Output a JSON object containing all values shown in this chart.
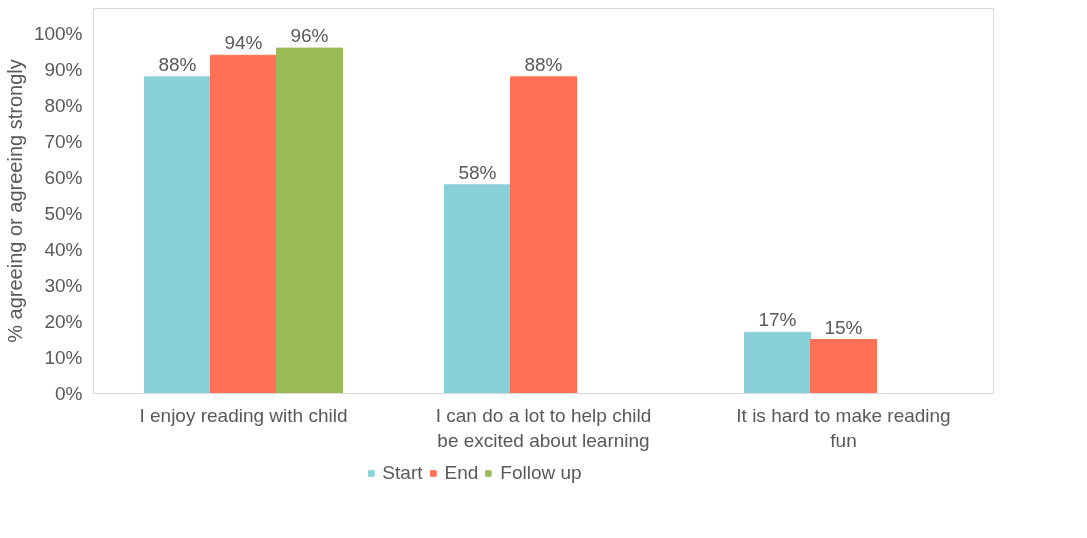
{
  "chart_data": {
    "type": "bar",
    "ylabel": "% agreeing or agreeing strongly",
    "categories": [
      "I enjoy reading with child",
      "I can do a lot to help child be excited about learning",
      "It is hard to make reading fun"
    ],
    "series": [
      {
        "name": "Start",
        "color": "#8ad0d9",
        "values": [
          88,
          58,
          17
        ],
        "value_labels": [
          "88%",
          "58%",
          "17%"
        ]
      },
      {
        "name": "End",
        "color": "#ff7056",
        "values": [
          94,
          88,
          15
        ],
        "value_labels": [
          "94%",
          "88%",
          "15%"
        ]
      },
      {
        "name": "Follow up",
        "color": "#9bbb59",
        "values": [
          96,
          null,
          null
        ],
        "value_labels": [
          "96%",
          null,
          null
        ]
      }
    ],
    "ylim": [
      0,
      107
    ],
    "yticks": [
      {
        "value": 0,
        "label": "0%"
      },
      {
        "value": 10,
        "label": "10%"
      },
      {
        "value": 20,
        "label": "20%"
      },
      {
        "value": 30,
        "label": "30%"
      },
      {
        "value": 40,
        "label": "40%"
      },
      {
        "value": 50,
        "label": "50%"
      },
      {
        "value": 60,
        "label": "60%"
      },
      {
        "value": 70,
        "label": "70%"
      },
      {
        "value": 80,
        "label": "80%"
      },
      {
        "value": 90,
        "label": "90%"
      },
      {
        "value": 100,
        "label": "100%"
      }
    ],
    "grid": false,
    "legend": "bottom"
  }
}
